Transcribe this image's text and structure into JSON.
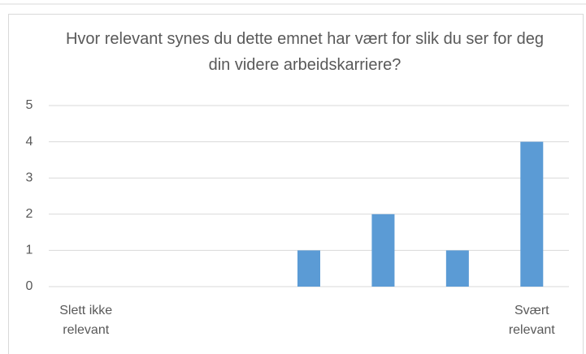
{
  "chart_data": {
    "type": "bar",
    "title": "Hvor relevant synes du dette emnet har vært for slik du ser for deg din videre arbeidskarriere?",
    "categories": [
      "Slett ikke relevant",
      null,
      null,
      null,
      null,
      null,
      "Svært relevant"
    ],
    "values": [
      0,
      0,
      0,
      1,
      2,
      1,
      4
    ],
    "color": "#5b9bd5",
    "ylim": [
      0,
      5
    ],
    "yticks": [
      0,
      1,
      2,
      3,
      4,
      5
    ],
    "grid": true
  }
}
